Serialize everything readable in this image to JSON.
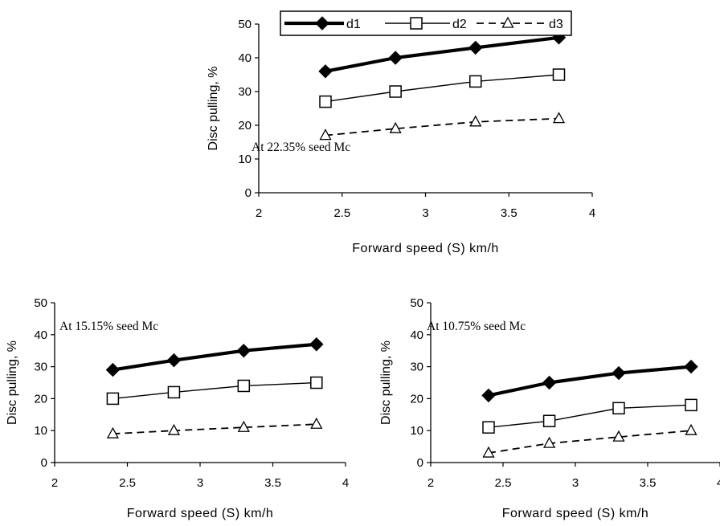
{
  "legend": [
    {
      "name": "d1",
      "style": "solid-thick",
      "marker": "diamond-filled"
    },
    {
      "name": "d2",
      "style": "solid-thin",
      "marker": "square-open"
    },
    {
      "name": "d3",
      "style": "dashed",
      "marker": "triangle-open"
    }
  ],
  "chart_data": [
    {
      "type": "line",
      "panel": "top",
      "annotation": "At 22.35% seed Mc",
      "xlabel": "Forward speed (S) km/h",
      "ylabel": "Disc pulling, %",
      "xlim": [
        2,
        4
      ],
      "ylim": [
        0,
        50
      ],
      "xticks": [
        "2",
        "2.5",
        "3",
        "3.5",
        "4"
      ],
      "yticks": [
        "0",
        "10",
        "20",
        "30",
        "40",
        "50"
      ],
      "legend_position": "top",
      "x": [
        2.4,
        2.82,
        3.3,
        3.8
      ],
      "series": [
        {
          "name": "d1",
          "values": [
            36,
            40,
            43,
            46
          ]
        },
        {
          "name": "d2",
          "values": [
            27,
            30,
            33,
            35
          ]
        },
        {
          "name": "d3",
          "values": [
            17,
            19,
            21,
            22
          ]
        }
      ]
    },
    {
      "type": "line",
      "panel": "bottom-left",
      "annotation": "At 15.15% seed Mc",
      "xlabel": "Forward speed (S) km/h",
      "ylabel": "Disc pulling, %",
      "xlim": [
        2,
        4
      ],
      "ylim": [
        0,
        50
      ],
      "xticks": [
        "2",
        "2.5",
        "3",
        "3.5",
        "4"
      ],
      "yticks": [
        "0",
        "10",
        "20",
        "30",
        "40",
        "50"
      ],
      "x": [
        2.4,
        2.82,
        3.3,
        3.8
      ],
      "series": [
        {
          "name": "d1",
          "values": [
            29,
            32,
            35,
            37
          ]
        },
        {
          "name": "d2",
          "values": [
            20,
            22,
            24,
            25
          ]
        },
        {
          "name": "d3",
          "values": [
            9,
            10,
            11,
            12
          ]
        }
      ]
    },
    {
      "type": "line",
      "panel": "bottom-right",
      "annotation": "At 10.75% seed Mc",
      "xlabel": "Forward speed (S) km/h",
      "ylabel": "Disc pulling, %",
      "xlim": [
        2,
        4
      ],
      "ylim": [
        0,
        50
      ],
      "xticks": [
        "2",
        "2.5",
        "3",
        "3.5",
        "4"
      ],
      "yticks": [
        "0",
        "10",
        "20",
        "30",
        "40",
        "50"
      ],
      "x": [
        2.4,
        2.82,
        3.3,
        3.8
      ],
      "series": [
        {
          "name": "d1",
          "values": [
            21,
            25,
            28,
            30
          ]
        },
        {
          "name": "d2",
          "values": [
            11,
            13,
            17,
            18
          ]
        },
        {
          "name": "d3",
          "values": [
            3,
            6,
            8,
            10
          ]
        }
      ]
    }
  ]
}
